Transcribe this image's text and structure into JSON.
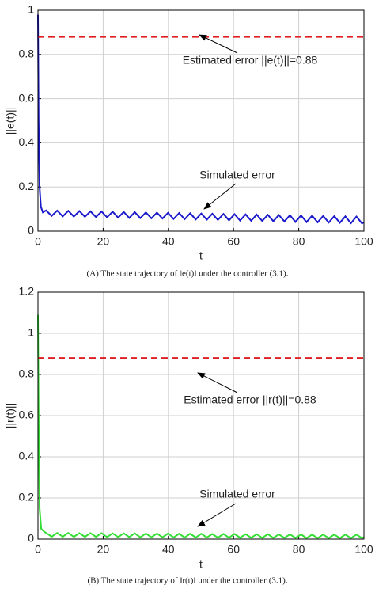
{
  "chart_data": [
    {
      "type": "line",
      "xlabel": "t",
      "ylabel": "||e(t)||",
      "caption": "(A) The state trajectory of  ‖e(t)‖  under the controller (3.1).",
      "annotations": [
        "Estimated error ||e(t)||=0.88",
        "Simulated error"
      ],
      "xlim": [
        0,
        100
      ],
      "xticks": [
        0,
        20,
        40,
        60,
        80,
        100
      ],
      "ylim": [
        0,
        1
      ],
      "yticks": [
        0,
        0.2,
        0.4,
        0.6,
        0.8,
        1
      ],
      "grid": true,
      "series": [
        {
          "color": "#1a1acc",
          "dashed": false,
          "x": [
            0,
            0.2,
            0.5,
            0.9,
            1.5,
            2.5,
            4.2,
            5.9,
            7.6,
            9.3,
            11,
            12.7,
            14.4,
            16.1,
            17.8,
            19.5,
            21.2,
            22.9,
            24.6,
            26.3,
            28,
            29.7,
            31.4,
            33.1,
            34.8,
            36.5,
            38.2,
            39.9,
            41.6,
            43.3,
            45,
            46.7,
            48.4,
            50.1,
            51.8,
            53.5,
            55.2,
            56.9,
            58.6,
            60.3,
            62,
            63.7,
            65.4,
            67.1,
            68.8,
            70.5,
            72.2,
            73.9,
            75.6,
            77.3,
            79,
            80.7,
            82.4,
            84.1,
            85.8,
            87.5,
            89.2,
            90.9,
            92.6,
            94.3,
            96,
            97.7,
            99.4,
            100
          ],
          "values": [
            0.98,
            0.5,
            0.2,
            0.11,
            0.085,
            0.094,
            0.069,
            0.093,
            0.067,
            0.092,
            0.066,
            0.091,
            0.065,
            0.09,
            0.064,
            0.089,
            0.063,
            0.088,
            0.061,
            0.087,
            0.06,
            0.086,
            0.059,
            0.085,
            0.058,
            0.084,
            0.057,
            0.083,
            0.055,
            0.082,
            0.054,
            0.081,
            0.053,
            0.08,
            0.052,
            0.079,
            0.051,
            0.078,
            0.049,
            0.077,
            0.048,
            0.076,
            0.047,
            0.075,
            0.046,
            0.074,
            0.045,
            0.073,
            0.044,
            0.072,
            0.042,
            0.071,
            0.041,
            0.07,
            0.04,
            0.069,
            0.039,
            0.068,
            0.038,
            0.067,
            0.036,
            0.066,
            0.035,
            0.04
          ]
        },
        {
          "color": "#e02020",
          "dashed": true,
          "x": [
            0,
            100
          ],
          "values": [
            0.88,
            0.88
          ]
        }
      ]
    },
    {
      "type": "line",
      "xlabel": "t",
      "ylabel": "||r(t)||",
      "caption": "(B) The state trajectory of  ‖r(t)‖  under the controller (3.1).",
      "annotations": [
        "Estimated error ||r(t)||=0.88",
        "Simulated error"
      ],
      "xlim": [
        0,
        100
      ],
      "xticks": [
        0,
        20,
        40,
        60,
        80,
        100
      ],
      "ylim": [
        0,
        1.2
      ],
      "yticks": [
        0,
        0.2,
        0.4,
        0.6,
        0.8,
        1,
        1.2
      ],
      "grid": true,
      "series": [
        {
          "color": "#33dd33",
          "dashed": false,
          "x": [
            0,
            0.2,
            0.5,
            1,
            2,
            2.5,
            4.2,
            5.9,
            7.6,
            9.3,
            11,
            12.7,
            14.4,
            16.1,
            17.8,
            19.5,
            21.2,
            22.9,
            24.6,
            26.3,
            28,
            29.7,
            31.4,
            33.1,
            34.8,
            36.5,
            38.2,
            39.9,
            41.6,
            43.3,
            45,
            46.7,
            48.4,
            50.1,
            51.8,
            53.5,
            55.2,
            56.9,
            58.6,
            60.3,
            62,
            63.7,
            65.4,
            67.1,
            68.8,
            70.5,
            72.2,
            73.9,
            75.6,
            77.3,
            79,
            80.7,
            82.4,
            84.1,
            85.8,
            87.5,
            89.2,
            90.9,
            92.6,
            94.3,
            96,
            97.7,
            99.4,
            100
          ],
          "values": [
            1.09,
            0.6,
            0.15,
            0.05,
            0.035,
            0.03,
            0.012,
            0.03,
            0.012,
            0.03,
            0.011,
            0.029,
            0.011,
            0.029,
            0.011,
            0.029,
            0.01,
            0.028,
            0.01,
            0.028,
            0.01,
            0.028,
            0.009,
            0.027,
            0.009,
            0.027,
            0.009,
            0.027,
            0.008,
            0.026,
            0.008,
            0.026,
            0.008,
            0.026,
            0.008,
            0.025,
            0.007,
            0.025,
            0.007,
            0.025,
            0.007,
            0.024,
            0.007,
            0.024,
            0.006,
            0.024,
            0.006,
            0.023,
            0.006,
            0.023,
            0.006,
            0.023,
            0.005,
            0.022,
            0.005,
            0.022,
            0.005,
            0.022,
            0.005,
            0.022,
            0.005,
            0.022,
            0.005,
            0.01
          ]
        },
        {
          "color": "#e02020",
          "dashed": true,
          "x": [
            0,
            100
          ],
          "values": [
            0.88,
            0.88
          ]
        }
      ]
    }
  ]
}
